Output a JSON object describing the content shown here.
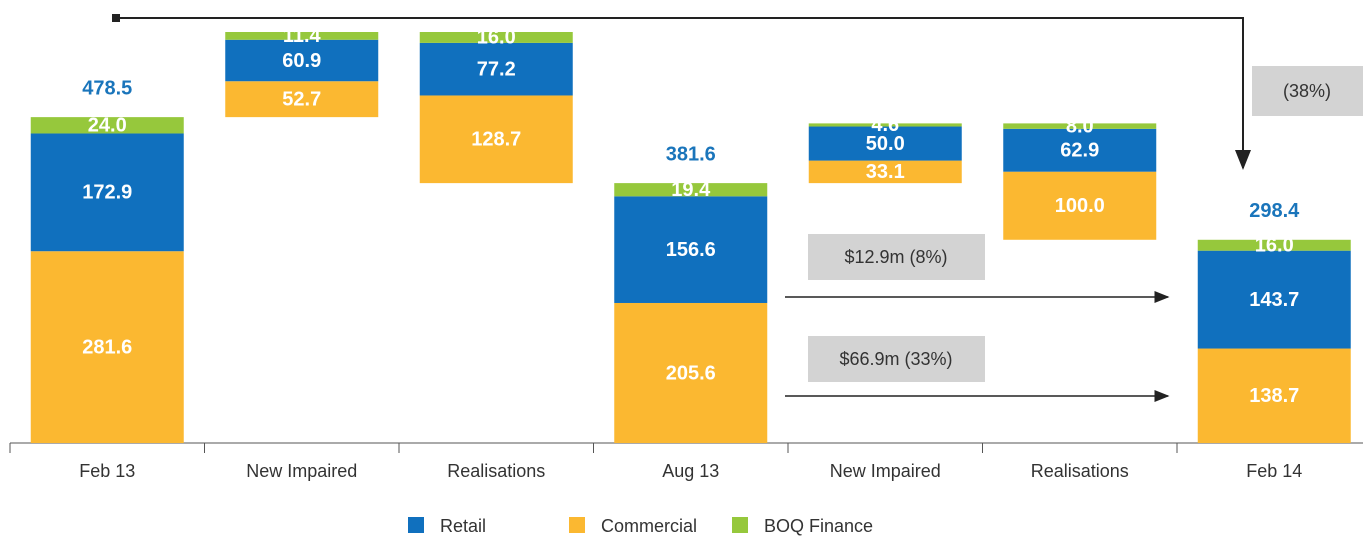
{
  "chart_data": {
    "type": "waterfall",
    "categories": [
      "Feb 13",
      "New Impaired",
      "Realisations",
      "Aug 13",
      "New Impaired",
      "Realisations",
      "Feb 14"
    ],
    "series": [
      {
        "name": "Commercial",
        "color": "#fbb831",
        "values": [
          281.6,
          52.7,
          128.7,
          205.6,
          33.1,
          100.0,
          138.7
        ],
        "value_labels": [
          "281.6",
          "52.7",
          "128.7",
          "205.6",
          "33.1",
          "100.0",
          "138.7"
        ]
      },
      {
        "name": "Retail",
        "color": "#1070be",
        "values": [
          172.9,
          60.9,
          77.2,
          156.6,
          50.0,
          62.9,
          143.7
        ],
        "value_labels": [
          "172.9",
          "60.9",
          "77.2",
          "156.6",
          "50.0",
          "62.9",
          "143.7"
        ]
      },
      {
        "name": "BOQ Finance",
        "color": "#96c83c",
        "values": [
          24.0,
          11.4,
          16.0,
          19.4,
          4.6,
          8.0,
          16.0
        ],
        "value_labels": [
          "24.0",
          "11.4",
          "16.0",
          "19.4",
          "4.6",
          "8.0",
          "16.0"
        ]
      }
    ],
    "totals": [
      478.5,
      null,
      null,
      381.6,
      null,
      null,
      298.4
    ],
    "annotations": [
      "(38%)",
      "$12.9m (8%)",
      "$66.9m (33%)"
    ]
  }
}
